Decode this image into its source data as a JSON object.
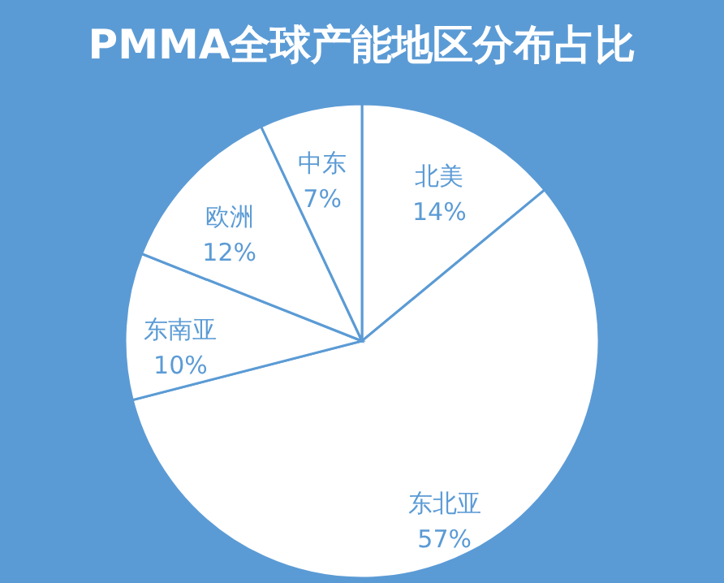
{
  "chart_data": {
    "type": "pie",
    "title": "PMMA全球产能地区分布占比",
    "categories": [
      "北美",
      "东北亚",
      "东南亚",
      "欧洲",
      "中东"
    ],
    "values": [
      14,
      57,
      10,
      12,
      7
    ],
    "value_labels": [
      "14%",
      "57%",
      "10%",
      "12%",
      "7%"
    ],
    "colors": [
      "#ffffff",
      "#ffffff",
      "#ffffff",
      "#ffffff",
      "#ffffff"
    ]
  }
}
